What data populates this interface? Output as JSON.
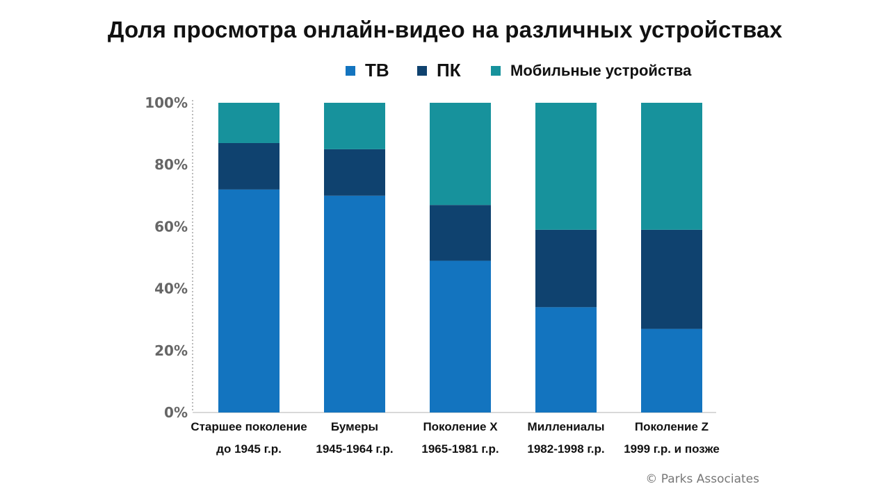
{
  "chart_data": {
    "type": "bar",
    "stacked": true,
    "title": "Доля просмотра онлайн-видео на различных устройствах",
    "categories": [
      [
        "Старшее поколение",
        "до 1945 г.р."
      ],
      [
        "Бумеры",
        "1945-1964 г.р."
      ],
      [
        "Поколение X",
        "1965-1981 г.р."
      ],
      [
        "Миллениалы",
        "1982-1998 г.р."
      ],
      [
        "Поколение Z",
        "1999 г.р. и позже"
      ]
    ],
    "series": [
      {
        "name": "ТВ",
        "color": "#1374bf",
        "values": [
          72,
          70,
          49,
          34,
          27
        ]
      },
      {
        "name": "ПК",
        "color": "#0f426f",
        "values": [
          15,
          15,
          18,
          25,
          32
        ]
      },
      {
        "name": "Мобильные устройства",
        "color": "#17929c",
        "values": [
          13,
          15,
          33,
          41,
          41
        ]
      }
    ],
    "ylim": [
      0,
      100
    ],
    "yticks": [
      "0%",
      "20%",
      "40%",
      "60%",
      "80%",
      "100%"
    ],
    "legend_position": "top",
    "grid": false
  },
  "credit": "© Parks Associates"
}
